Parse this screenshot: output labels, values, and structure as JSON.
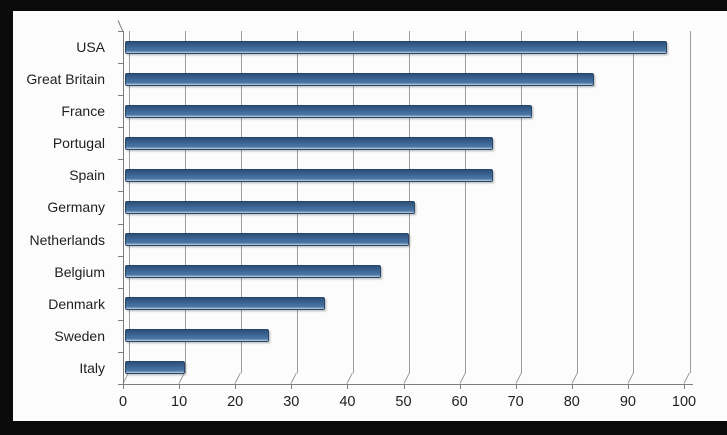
{
  "chart_data": {
    "type": "bar",
    "orientation": "horizontal",
    "title": "",
    "xlabel": "",
    "ylabel": "",
    "categories": [
      "USA",
      "Great Britain",
      "France",
      "Portugal",
      "Spain",
      "Germany",
      "Netherlands",
      "Belgium",
      "Denmark",
      "Sweden",
      "Italy"
    ],
    "values": [
      96,
      83,
      72,
      65,
      65,
      51,
      50,
      45,
      35,
      25,
      10
    ],
    "xlim": [
      0,
      100
    ],
    "x_ticks": [
      0,
      10,
      20,
      30,
      40,
      50,
      60,
      70,
      80,
      90,
      100
    ],
    "x_tick_labels": [
      "0",
      "10",
      "20",
      "30",
      "40",
      "50",
      "60",
      "70",
      "80",
      "90",
      "100"
    ],
    "grid": "vertical-gridlines-on",
    "legend": "none",
    "style": "excel-3d-beveled-bars",
    "colors": {
      "bar_fill": "#3d6897",
      "bar_border": "#27486c",
      "gridline": "#9b9b9b",
      "axis": "#7d7d7d",
      "text": "#1f1f1f",
      "plot_background": "#fcfcfc",
      "frame": "#0b0b0b"
    }
  }
}
